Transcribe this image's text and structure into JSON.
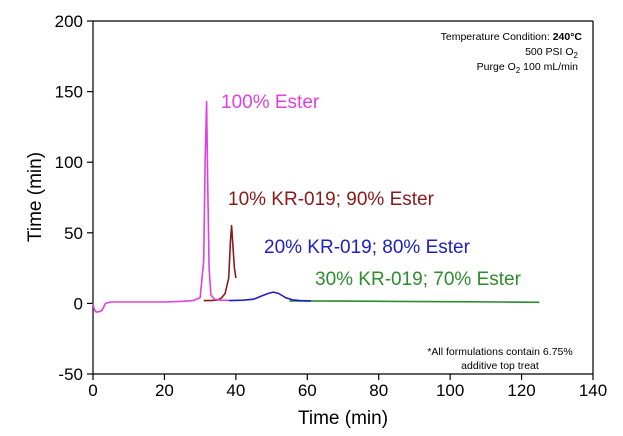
{
  "chart_data": {
    "type": "line",
    "title": "",
    "xlabel": "Time (min)",
    "ylabel": "Time (min)",
    "xlim": [
      0,
      140
    ],
    "ylim": [
      -50,
      200
    ],
    "xticks": [
      "0",
      "20",
      "40",
      "60",
      "80",
      "100",
      "120",
      "140"
    ],
    "yticks": [
      "-50",
      "0",
      "50",
      "100",
      "150",
      "200"
    ],
    "grid": false,
    "legend": "inline labels",
    "series": [
      {
        "name": "100% Ester",
        "color": "#e040e0",
        "x": [
          0,
          0.3,
          0.8,
          1.5,
          2.5,
          3.5,
          5,
          10,
          15,
          20,
          25,
          28,
          30,
          31,
          31.4,
          31.8,
          32.1,
          32.5,
          33,
          34,
          35,
          36,
          37,
          38
        ],
        "y": [
          0,
          -4,
          -6,
          -6,
          -5,
          0,
          1,
          1,
          1,
          1,
          1.5,
          2,
          4,
          30,
          100,
          143,
          90,
          25,
          6,
          3,
          2.5,
          2.3,
          2.2,
          2.2
        ]
      },
      {
        "name": "10% KR-019; 90% Ester",
        "color": "#8b1a1a",
        "x": [
          31,
          33,
          35,
          36,
          37,
          38,
          38.5,
          38.8,
          39.2,
          39.6,
          40
        ],
        "y": [
          2,
          2,
          2.5,
          4,
          7,
          18,
          45,
          55,
          40,
          25,
          18
        ]
      },
      {
        "name": "20% KR-019; 80% Ester",
        "color": "#2020c0",
        "x": [
          38,
          42,
          45,
          47,
          49,
          50.5,
          52,
          54,
          56,
          58,
          61
        ],
        "y": [
          2,
          2.3,
          3,
          5,
          7,
          8,
          7,
          4,
          2.5,
          2,
          1.8
        ]
      },
      {
        "name": "30% KR-019; 70% Ester",
        "color": "#2e8b2e",
        "x": [
          55,
          70,
          85,
          100,
          115,
          125
        ],
        "y": [
          1.8,
          1.6,
          1.4,
          1.2,
          1.0,
          0.8
        ]
      }
    ],
    "annotations": {
      "condition_prefix": "Temperature Condition: ",
      "condition_value": "240°C",
      "pressure_prefix": "500 PSI O",
      "pressure_sub": "2",
      "purge_prefix": "Purge O",
      "purge_sub": "2",
      "purge_suffix": " 100 mL/min",
      "footnote_line1": "*All formulations contain 6.75%",
      "footnote_line2": "additive top treat"
    }
  }
}
